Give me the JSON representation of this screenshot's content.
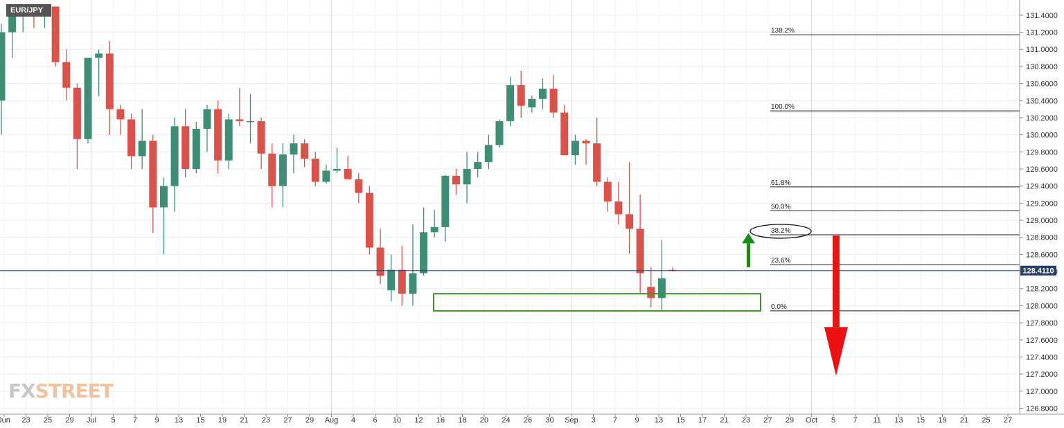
{
  "chart_data": {
    "type": "candlestick",
    "symbol": "EUR/JPY",
    "last_price": "128.4110",
    "ylim": [
      126.7,
      131.5
    ],
    "y_ticks": [
      "126.8000",
      "127.0000",
      "127.2000",
      "127.4000",
      "127.6000",
      "127.8000",
      "128.0000",
      "128.2000",
      "128.4000",
      "128.6000",
      "128.8000",
      "129.0000",
      "129.2000",
      "129.4000",
      "129.6000",
      "129.8000",
      "130.0000",
      "130.2000",
      "130.4000",
      "130.6000",
      "130.8000",
      "131.0000",
      "131.2000",
      "131.4000"
    ],
    "x_ticks": [
      "Jun",
      "23",
      "25",
      "29",
      "Jul",
      "5",
      "7",
      "9",
      "13",
      "15",
      "19",
      "21",
      "23",
      "27",
      "29",
      "Aug",
      "4",
      "6",
      "10",
      "12",
      "16",
      "18",
      "20",
      "24",
      "26",
      "30",
      "Sep",
      "3",
      "7",
      "9",
      "13",
      "15",
      "17",
      "21",
      "23",
      "27",
      "29",
      "Oct",
      "5",
      "7",
      "11",
      "13",
      "15",
      "19",
      "21",
      "25",
      "27"
    ],
    "fibonacci": [
      {
        "label": "138.2%",
        "price": 131.17
      },
      {
        "label": "100.0%",
        "price": 130.28
      },
      {
        "label": "61.8%",
        "price": 129.39
      },
      {
        "label": "50.0%",
        "price": 129.11
      },
      {
        "label": "38.2%",
        "price": 128.83
      },
      {
        "label": "23.6%",
        "price": 128.48
      },
      {
        "label": "0.0%",
        "price": 127.94
      }
    ],
    "support_zone": {
      "low": 127.94,
      "high": 128.14
    },
    "candles": [
      {
        "open": 130.4,
        "high": 131.3,
        "low": 130.0,
        "close": 131.2
      },
      {
        "open": 131.2,
        "high": 131.45,
        "low": 130.9,
        "close": 131.45
      },
      {
        "open": 131.4,
        "high": 131.5,
        "low": 131.2,
        "close": 131.4
      },
      {
        "open": 131.45,
        "high": 131.5,
        "low": 131.25,
        "close": 131.4
      },
      {
        "open": 131.4,
        "high": 131.5,
        "low": 131.25,
        "close": 131.5
      },
      {
        "open": 131.5,
        "high": 131.5,
        "low": 130.8,
        "close": 130.85
      },
      {
        "open": 130.85,
        "high": 131.0,
        "low": 130.4,
        "close": 130.55
      },
      {
        "open": 130.55,
        "high": 130.6,
        "low": 129.6,
        "close": 129.95
      },
      {
        "open": 129.95,
        "high": 130.9,
        "low": 129.9,
        "close": 130.9
      },
      {
        "open": 130.9,
        "high": 131.0,
        "low": 130.45,
        "close": 130.95
      },
      {
        "open": 130.95,
        "high": 131.1,
        "low": 130.0,
        "close": 130.3
      },
      {
        "open": 130.3,
        "high": 130.35,
        "low": 130.0,
        "close": 130.18
      },
      {
        "open": 130.18,
        "high": 130.25,
        "low": 129.6,
        "close": 129.75
      },
      {
        "open": 129.75,
        "high": 130.3,
        "low": 129.6,
        "close": 129.93
      },
      {
        "open": 129.93,
        "high": 130.0,
        "low": 128.85,
        "close": 129.15
      },
      {
        "open": 129.15,
        "high": 129.5,
        "low": 128.6,
        "close": 129.4
      },
      {
        "open": 129.4,
        "high": 130.2,
        "low": 129.1,
        "close": 130.1
      },
      {
        "open": 130.1,
        "high": 130.3,
        "low": 129.5,
        "close": 129.6
      },
      {
        "open": 129.6,
        "high": 130.15,
        "low": 129.55,
        "close": 130.07
      },
      {
        "open": 130.07,
        "high": 130.35,
        "low": 129.8,
        "close": 130.3
      },
      {
        "open": 130.3,
        "high": 130.4,
        "low": 129.55,
        "close": 129.7
      },
      {
        "open": 129.7,
        "high": 130.25,
        "low": 129.6,
        "close": 130.18
      },
      {
        "open": 130.18,
        "high": 130.55,
        "low": 130.1,
        "close": 130.16
      },
      {
        "open": 130.16,
        "high": 130.48,
        "low": 129.9,
        "close": 130.16
      },
      {
        "open": 130.16,
        "high": 130.2,
        "low": 129.6,
        "close": 129.78
      },
      {
        "open": 129.78,
        "high": 129.9,
        "low": 129.15,
        "close": 129.4
      },
      {
        "open": 129.4,
        "high": 129.9,
        "low": 129.15,
        "close": 129.77
      },
      {
        "open": 129.77,
        "high": 130.0,
        "low": 129.55,
        "close": 129.9
      },
      {
        "open": 129.9,
        "high": 129.95,
        "low": 129.62,
        "close": 129.72
      },
      {
        "open": 129.72,
        "high": 129.8,
        "low": 129.4,
        "close": 129.45
      },
      {
        "open": 129.45,
        "high": 129.65,
        "low": 129.43,
        "close": 129.58
      },
      {
        "open": 129.58,
        "high": 129.85,
        "low": 129.55,
        "close": 129.6
      },
      {
        "open": 129.6,
        "high": 129.75,
        "low": 129.5,
        "close": 129.48
      },
      {
        "open": 129.48,
        "high": 129.55,
        "low": 129.2,
        "close": 129.32
      },
      {
        "open": 129.32,
        "high": 129.4,
        "low": 128.6,
        "close": 128.68
      },
      {
        "open": 128.68,
        "high": 128.9,
        "low": 128.25,
        "close": 128.35
      },
      {
        "open": 128.18,
        "high": 128.6,
        "low": 128.05,
        "close": 128.42
      },
      {
        "open": 128.42,
        "high": 128.7,
        "low": 128.0,
        "close": 128.14
      },
      {
        "open": 128.14,
        "high": 128.95,
        "low": 128.0,
        "close": 128.38
      },
      {
        "open": 128.38,
        "high": 129.15,
        "low": 128.35,
        "close": 128.86
      },
      {
        "open": 128.86,
        "high": 129.12,
        "low": 128.8,
        "close": 128.92
      },
      {
        "open": 128.92,
        "high": 129.53,
        "low": 128.75,
        "close": 129.52
      },
      {
        "open": 129.52,
        "high": 129.6,
        "low": 129.3,
        "close": 129.42
      },
      {
        "open": 129.42,
        "high": 129.8,
        "low": 129.2,
        "close": 129.6
      },
      {
        "open": 129.6,
        "high": 129.8,
        "low": 129.5,
        "close": 129.68
      },
      {
        "open": 129.68,
        "high": 130.0,
        "low": 129.6,
        "close": 129.88
      },
      {
        "open": 129.88,
        "high": 130.18,
        "low": 129.85,
        "close": 130.16
      },
      {
        "open": 130.16,
        "high": 130.68,
        "low": 130.1,
        "close": 130.58
      },
      {
        "open": 130.58,
        "high": 130.75,
        "low": 130.2,
        "close": 130.34
      },
      {
        "open": 130.32,
        "high": 130.46,
        "low": 130.26,
        "close": 130.42
      },
      {
        "open": 130.42,
        "high": 130.66,
        "low": 130.3,
        "close": 130.54
      },
      {
        "open": 130.54,
        "high": 130.7,
        "low": 130.2,
        "close": 130.26
      },
      {
        "open": 130.26,
        "high": 130.35,
        "low": 129.8,
        "close": 129.76
      },
      {
        "open": 129.76,
        "high": 130.0,
        "low": 129.65,
        "close": 129.93
      },
      {
        "open": 129.93,
        "high": 129.95,
        "low": 129.65,
        "close": 129.9
      },
      {
        "open": 129.9,
        "high": 130.2,
        "low": 129.4,
        "close": 129.45
      },
      {
        "open": 129.45,
        "high": 129.5,
        "low": 129.1,
        "close": 129.22
      },
      {
        "open": 129.22,
        "high": 129.45,
        "low": 128.95,
        "close": 129.07
      },
      {
        "open": 129.07,
        "high": 129.68,
        "low": 128.61,
        "close": 128.9
      },
      {
        "open": 128.9,
        "high": 129.3,
        "low": 128.15,
        "close": 128.38
      },
      {
        "open": 128.22,
        "high": 128.45,
        "low": 127.98,
        "close": 128.09
      },
      {
        "open": 128.09,
        "high": 128.77,
        "low": 127.95,
        "close": 128.32
      },
      {
        "open": 128.42,
        "high": 128.45,
        "low": 128.4,
        "close": 128.41
      }
    ]
  }
}
